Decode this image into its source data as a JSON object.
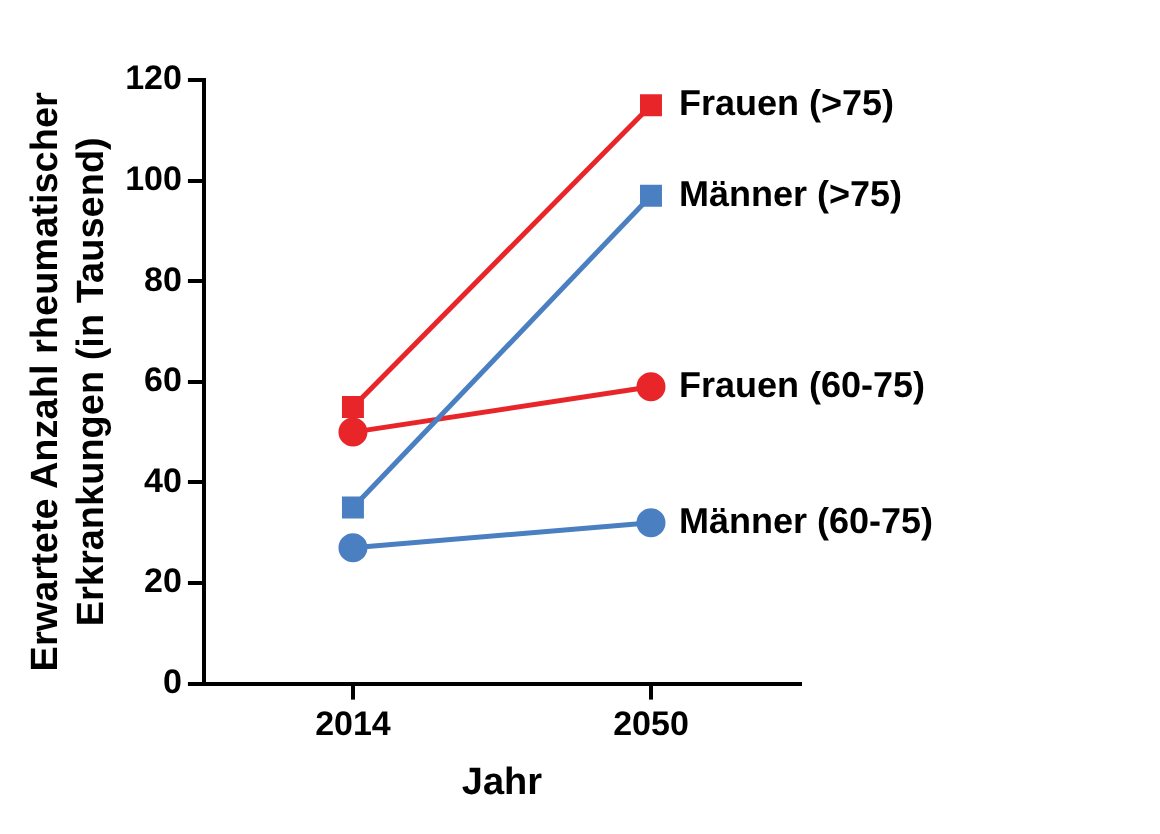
{
  "chart_data": {
    "type": "line",
    "xlabel": "Jahr",
    "ylabel": "Erwartete Anzahl rheumatischer Erkrankungen (in Tausend)",
    "categories": [
      "2014",
      "2050"
    ],
    "ylim": [
      0,
      120
    ],
    "yticks": [
      0,
      20,
      40,
      60,
      80,
      100,
      120
    ],
    "grid": false,
    "legend": false,
    "series": [
      {
        "name": "Frauen (>75)",
        "color": "#e8262a",
        "marker": "square",
        "values": [
          55,
          115
        ]
      },
      {
        "name": "Männer (>75)",
        "color": "#4a7fc1",
        "marker": "square",
        "values": [
          35,
          97
        ]
      },
      {
        "name": "Frauen (60-75)",
        "color": "#e8262a",
        "marker": "circle",
        "values": [
          50,
          59
        ]
      },
      {
        "name": "Männer (60-75)",
        "color": "#4a7fc1",
        "marker": "circle",
        "values": [
          27,
          32
        ]
      }
    ]
  }
}
